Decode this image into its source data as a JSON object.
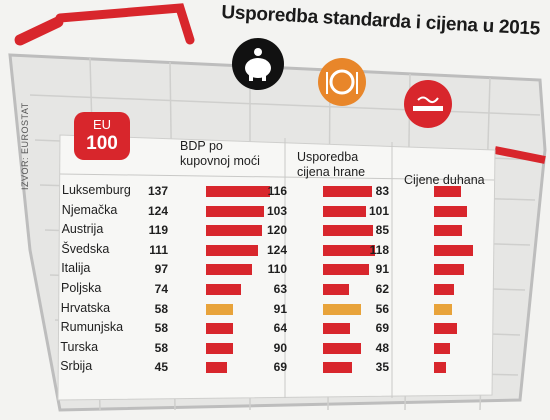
{
  "title": "Usporedba standarda i cijena u 2015",
  "source": "IZVOR: EUROSTAT",
  "eu_badge": {
    "line1": "EU",
    "line2": "100"
  },
  "icons": [
    "piggy-bank-icon",
    "food-plate-icon",
    "cigarette-icon"
  ],
  "colors": {
    "bar": "#d8262c",
    "highlight": "#e8a33a",
    "cart": "#d8262c",
    "icon_black": "#111111",
    "icon_orange": "#e8862a"
  },
  "chart_data": {
    "type": "bar",
    "categories": [
      "Luksemburg",
      "Njemačka",
      "Austrija",
      "Švedska",
      "Italija",
      "Poljska",
      "Hrvatska",
      "Rumunjska",
      "Turska",
      "Srbija"
    ],
    "highlight_category": "Hrvatska",
    "series": [
      {
        "name": "BDP po kupovnoj moći",
        "values": [
          137,
          124,
          119,
          111,
          97,
          74,
          58,
          58,
          58,
          45
        ]
      },
      {
        "name": "Usporedba cijena hrane",
        "values": [
          116,
          103,
          120,
          124,
          110,
          63,
          91,
          64,
          90,
          69
        ]
      },
      {
        "name": "Cijene duhana",
        "values": [
          83,
          101,
          85,
          118,
          91,
          62,
          56,
          69,
          48,
          35
        ]
      }
    ]
  }
}
